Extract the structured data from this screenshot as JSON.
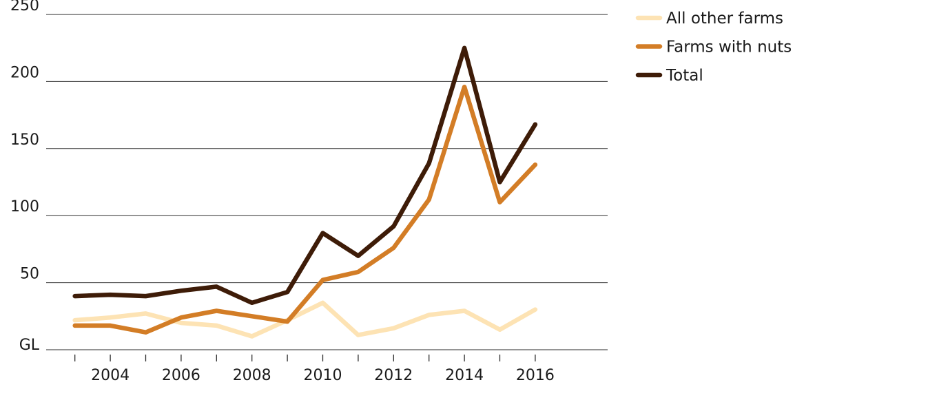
{
  "chart_data": {
    "type": "line",
    "title": "",
    "xlabel": "",
    "ylabel": "GL",
    "ylim": [
      0,
      250
    ],
    "xlim": [
      2002.5,
      2017.5
    ],
    "y_ticks": [
      50,
      100,
      150,
      200,
      250
    ],
    "x_tick_labels": [
      "2004",
      "2006",
      "2008",
      "2010",
      "2012",
      "2014",
      "2016"
    ],
    "grid": true,
    "legend_position": "top-right",
    "x": [
      2003,
      2004,
      2005,
      2006,
      2007,
      2008,
      2009,
      2010,
      2011,
      2012,
      2013,
      2014,
      2015,
      2016
    ],
    "series": [
      {
        "name": "All other farms",
        "color": "#fde3b4",
        "values": [
          22,
          24,
          27,
          20,
          18,
          10,
          22,
          35,
          11,
          16,
          26,
          29,
          15,
          30
        ]
      },
      {
        "name": "Farms with nuts",
        "color": "#d37d26",
        "values": [
          18,
          18,
          13,
          24,
          29,
          25,
          21,
          52,
          58,
          76,
          112,
          196,
          110,
          138
        ]
      },
      {
        "name": "Total",
        "color": "#3e1c08",
        "values": [
          40,
          41,
          40,
          44,
          47,
          35,
          43,
          87,
          70,
          92,
          139,
          225,
          125,
          168
        ]
      }
    ]
  }
}
